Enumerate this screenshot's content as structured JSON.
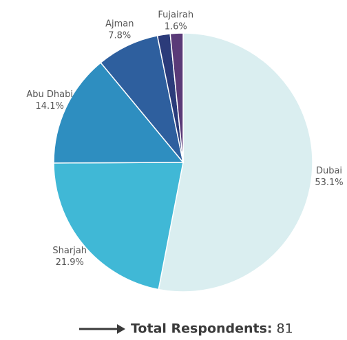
{
  "chart_data": {
    "type": "pie",
    "categories": [
      "Dubai",
      "Sharjah",
      "Abu Dhabi",
      "Ajman",
      null,
      "Fujairah"
    ],
    "values": [
      53.1,
      21.9,
      14.1,
      7.8,
      1.6,
      1.6
    ],
    "value_labels": [
      "53.1%",
      "21.9%",
      "14.1%",
      "7.8%",
      null,
      "1.6%"
    ],
    "colors": [
      "#daeef0",
      "#40b8d6",
      "#2e8ec0",
      "#2e5f9e",
      "#2b3b7a",
      "#5a3a78"
    ],
    "annotation": {
      "label": "Total Respondents:",
      "value": 81
    }
  }
}
